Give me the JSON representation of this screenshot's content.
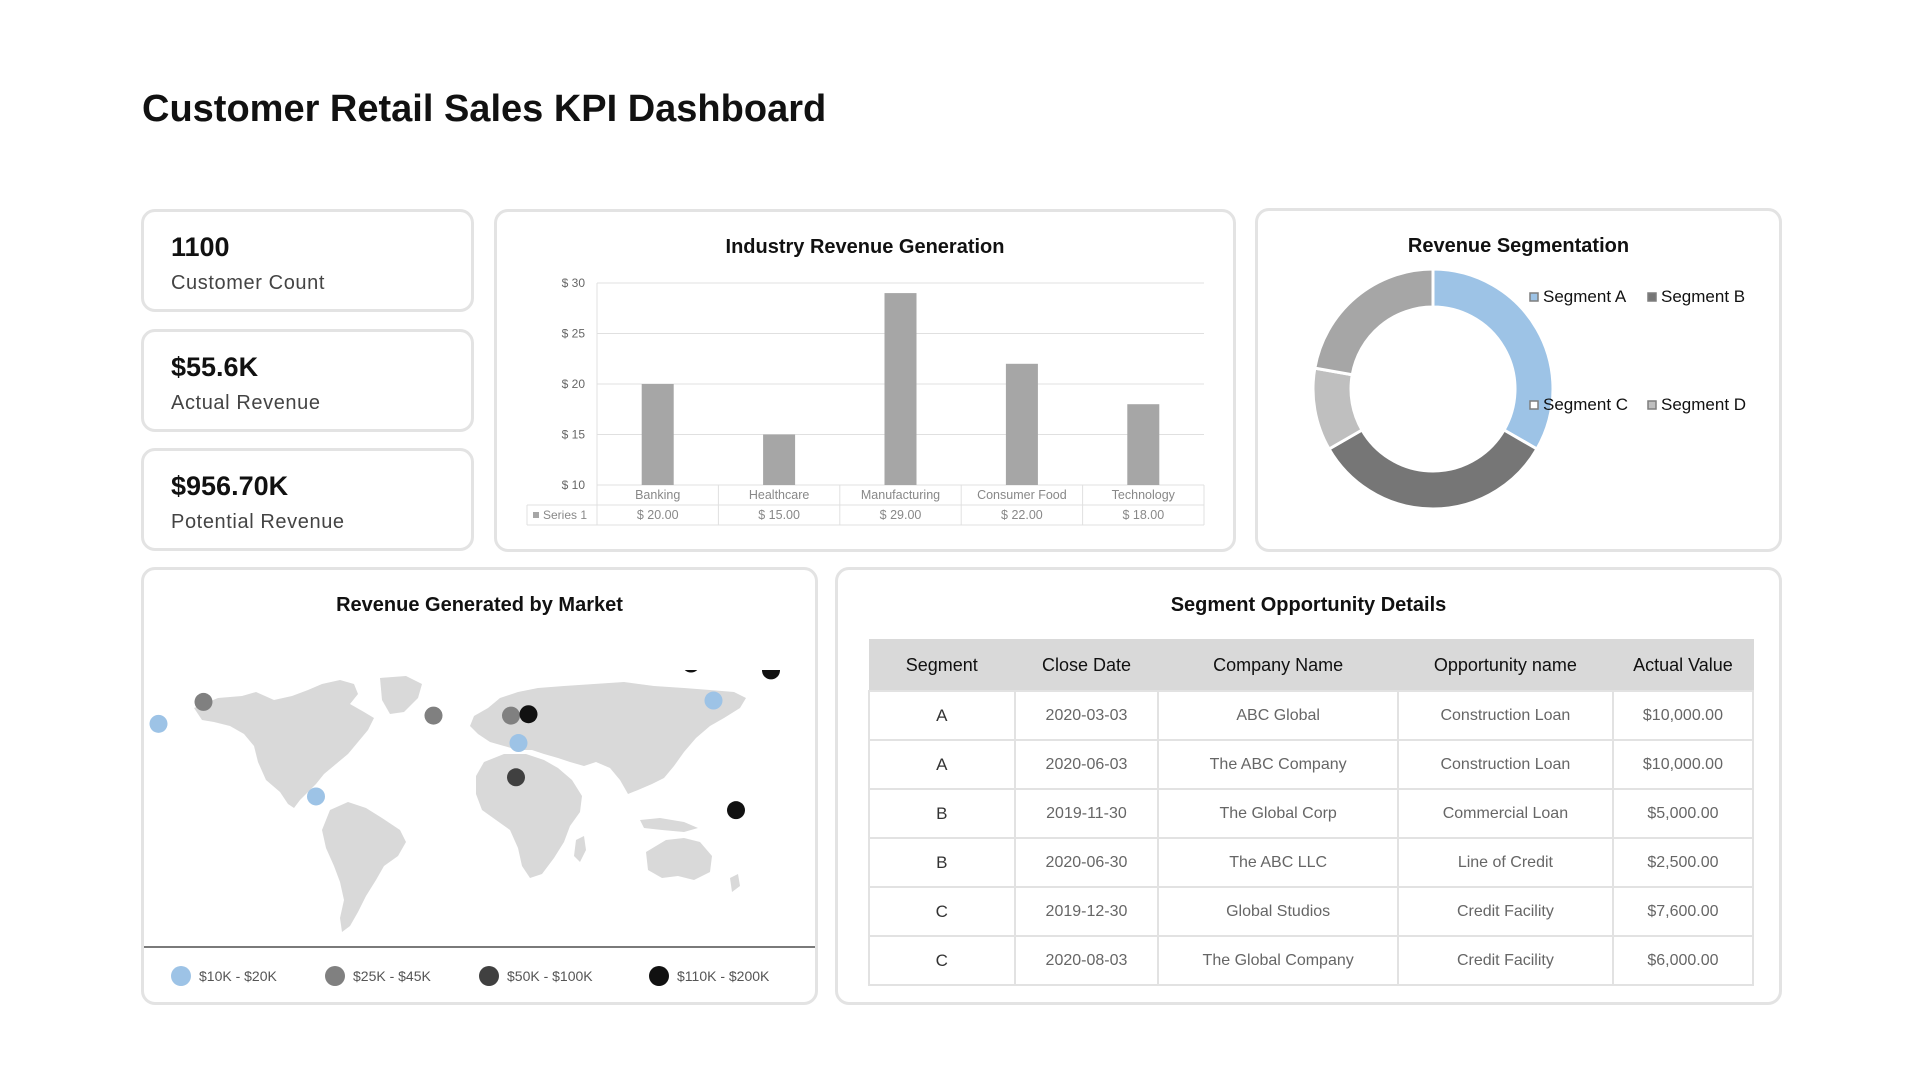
{
  "page": {
    "title": "Customer Retail Sales KPI Dashboard"
  },
  "kpis": [
    {
      "value": "1100",
      "label": "Customer Count"
    },
    {
      "value": "$55.6K",
      "label": "Actual Revenue"
    },
    {
      "value": "$956.70K",
      "label": "Potential Revenue"
    }
  ],
  "chart_data": [
    {
      "type": "bar",
      "title": "Industry Revenue Generation",
      "categories": [
        "Banking",
        "Healthcare",
        "Manufacturing",
        "Consumer Food",
        "Technology"
      ],
      "series": [
        {
          "name": "Series 1",
          "values": [
            20,
            15,
            29,
            22,
            18
          ],
          "color": "#a6a6a6"
        }
      ],
      "value_labels": [
        "$ 20.00",
        "$ 15.00",
        "$ 29.00",
        "$ 22.00",
        "$ 18.00"
      ],
      "ylim": [
        10,
        30
      ],
      "yticks": [
        10,
        15,
        20,
        25,
        30
      ],
      "ytick_labels": [
        "$ 10",
        "$ 15",
        "$ 20",
        "$ 25",
        "$ 30"
      ],
      "grid": true,
      "data_table": true
    },
    {
      "type": "pie",
      "title": "Revenue Segmentation",
      "donut": true,
      "labels": [
        "Segment A",
        "Segment B",
        "Segment D",
        "Segment C"
      ],
      "values": [
        30,
        30,
        10,
        20
      ],
      "colors": [
        "#9dc3e6",
        "#767676",
        "#bfbfbf",
        "#a6a6a6"
      ],
      "legend_labels": [
        "Segment A",
        "Segment B",
        "Segment C",
        "Segment D"
      ],
      "legend_colors": [
        "#9dc3e6",
        "#767676",
        "#ffffff",
        "#bfbfbf"
      ],
      "legend_position": "right"
    }
  ],
  "map": {
    "title": "Revenue Generated by Market",
    "legend": [
      {
        "label": "$10K - $20K",
        "color": "#9dc3e6"
      },
      {
        "label": "$25K - $45K",
        "color": "#808080"
      },
      {
        "label": "$50K - $100K",
        "color": "#404040"
      },
      {
        "label": "$110K - $200K",
        "color": "#111111"
      }
    ],
    "markers": [
      {
        "place": "Western North America",
        "lat": 47,
        "lon": -125,
        "tier": 2
      },
      {
        "place": "Western United States",
        "lat": 41,
        "lon": -113,
        "tier": 0
      },
      {
        "place": "Northern Canada",
        "lat": 57,
        "lon": -95,
        "tier": 1
      },
      {
        "place": "Brazil",
        "lat": -12,
        "lon": -50,
        "tier": 0
      },
      {
        "place": "Western Europe",
        "lat": 47,
        "lon": -3,
        "tier": 1
      },
      {
        "place": "Eastern Europe",
        "lat": 47,
        "lon": 28,
        "tier": 1
      },
      {
        "place": "Western Russia",
        "lat": 48,
        "lon": 35,
        "tier": 3
      },
      {
        "place": "Egypt",
        "lat": 27,
        "lon": 31,
        "tier": 0
      },
      {
        "place": "East Africa",
        "lat": 2,
        "lon": 30,
        "tier": 2
      },
      {
        "place": "Arctic",
        "lat": 85,
        "lon": 100,
        "tier": 3
      },
      {
        "place": "Eastern Siberia",
        "lat": 80,
        "lon": 132,
        "tier": 3
      },
      {
        "place": "Siberia",
        "lat": 58,
        "lon": 109,
        "tier": 0
      },
      {
        "place": "Western Australia",
        "lat": -22,
        "lon": 118,
        "tier": 3
      }
    ]
  },
  "table": {
    "title": "Segment Opportunity Details",
    "headers": [
      "Segment",
      "Close Date",
      "Company Name",
      "Opportunity name",
      "Actual Value"
    ],
    "rows": [
      [
        "A",
        "2020-03-03",
        "ABC Global",
        "Construction Loan",
        "$10,000.00"
      ],
      [
        "A",
        "2020-06-03",
        "The ABC Company",
        "Construction Loan",
        "$10,000.00"
      ],
      [
        "B",
        "2019-11-30",
        "The Global Corp",
        "Commercial Loan",
        "$5,000.00"
      ],
      [
        "B",
        "2020-06-30",
        "The ABC LLC",
        "Line of Credit",
        "$2,500.00"
      ],
      [
        "C",
        "2019-12-30",
        "Global Studios",
        "Credit Facility",
        "$7,600.00"
      ],
      [
        "C",
        "2020-08-03",
        "The Global Company",
        "Credit Facility",
        "$6,000.00"
      ]
    ]
  }
}
